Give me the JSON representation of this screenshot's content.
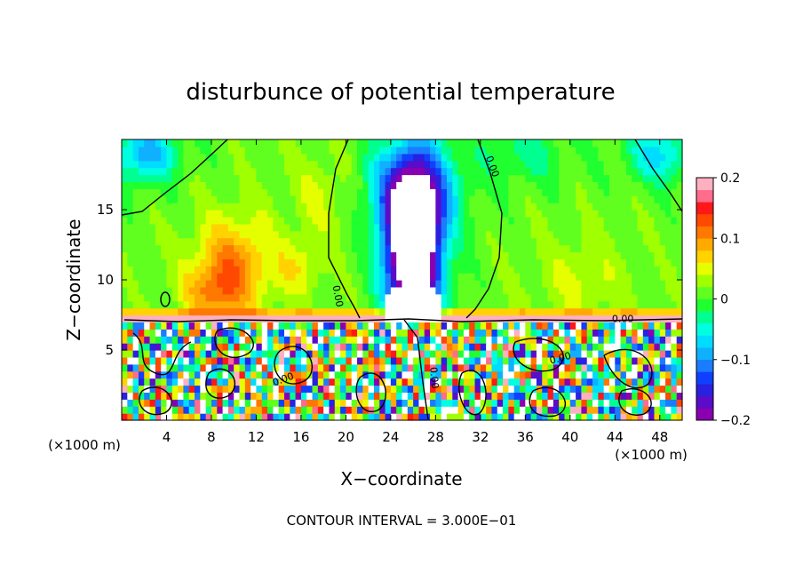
{
  "chart_data": {
    "type": "heatmap",
    "title": "disturbunce of potential temperature",
    "xlabel": "X−coordinate",
    "ylabel": "Z−coordinate",
    "x_unit_left": "(×1000 m)",
    "x_unit_right": "(×1000 m)",
    "footer": "CONTOUR INTERVAL = 3.000E−01",
    "xlim": [
      0,
      50
    ],
    "ylim": [
      0,
      20
    ],
    "x_ticks": [
      4,
      8,
      12,
      16,
      20,
      24,
      28,
      32,
      36,
      40,
      44,
      48
    ],
    "y_ticks": [
      5,
      10,
      15
    ],
    "colorbar": {
      "range": [
        -0.2,
        0.2
      ],
      "ticks": [
        0.2,
        0.1,
        0,
        -0.1,
        -0.2
      ],
      "tick_labels": [
        "0.2",
        "0.1",
        "0",
        "−0.1",
        "−0.2"
      ],
      "colors": [
        "#8a00b0",
        "#5a0cc8",
        "#2a20e0",
        "#1040ff",
        "#1a7cff",
        "#10b0ff",
        "#00dcff",
        "#00ffe0",
        "#00ff90",
        "#20ff30",
        "#60ff20",
        "#a0ff00",
        "#e6ff00",
        "#ffd200",
        "#ffaa00",
        "#ff7800",
        "#ff4800",
        "#ff1818",
        "#ff6c8c",
        "#ffb0c0"
      ]
    },
    "contour_labels": [
      {
        "text": "0.00",
        "x": 32.8,
        "y": 18.0,
        "rot": 70
      },
      {
        "text": "0.00",
        "x": 19.0,
        "y": 8.8,
        "rot": 80
      },
      {
        "text": "0.00",
        "x": 44.7,
        "y": 7.0,
        "rot": 0
      },
      {
        "text": "0.00",
        "x": 39.2,
        "y": 4.2,
        "rot": -15
      },
      {
        "text": "0.00",
        "x": 14.5,
        "y": 2.7,
        "rot": -20
      },
      {
        "text": "0.00",
        "x": 27.6,
        "y": 3.0,
        "rot": 85
      }
    ],
    "fields": {
      "upper": [
        {
          "x": 26,
          "y": 12,
          "a": -0.34,
          "sx": 2.4,
          "sy": 5.5
        },
        {
          "x": 26,
          "y": 16.5,
          "a": -0.12,
          "sx": 4.0,
          "sy": 3.5
        },
        {
          "x": 10,
          "y": 11,
          "a": 0.09,
          "sx": 3.5,
          "sy": 3.5
        },
        {
          "x": 8,
          "y": 9,
          "a": 0.06,
          "sx": 2.5,
          "sy": 2.0
        },
        {
          "x": 16,
          "y": 11,
          "a": 0.04,
          "sx": 2.0,
          "sy": 2.0
        },
        {
          "x": 2,
          "y": 19,
          "a": -0.1,
          "sx": 3.0,
          "sy": 2.0
        },
        {
          "x": 48,
          "y": 19,
          "a": -0.08,
          "sx": 3.0,
          "sy": 2.0
        },
        {
          "x": 36,
          "y": 19,
          "a": -0.04,
          "sx": 4.0,
          "sy": 2.0
        },
        {
          "x": 41,
          "y": 10,
          "a": 0.03,
          "sx": 4.0,
          "sy": 3.0
        },
        {
          "x": 18,
          "y": 16,
          "a": 0.03,
          "sx": 3.0,
          "sy": 3.0
        }
      ]
    }
  }
}
